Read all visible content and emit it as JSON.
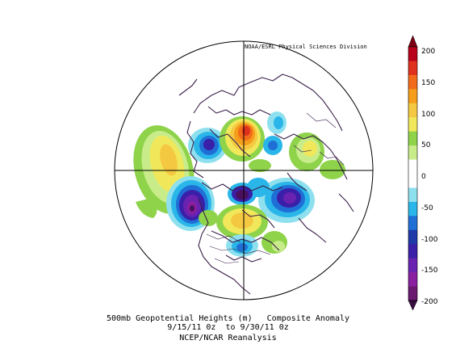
{
  "credit": "NOAA/ESRL Physical Sciences Division",
  "caption": {
    "line1": "500mb Geopotential Heights (m)   Composite Anomaly",
    "line2": "9/15/11 0z  to 9/30/11 0z",
    "line3": "NCEP/NCAR Reanalysis"
  },
  "colorbar": {
    "labels": [
      "200",
      "150",
      "100",
      "50",
      "0",
      "-50",
      "-100",
      "-150",
      "-200"
    ],
    "colors": [
      "#b8001a",
      "#e0301e",
      "#f26b1a",
      "#f59e1b",
      "#f5c842",
      "#f0e85a",
      "#8ed34a",
      "#c8ec8a",
      "#ffffff",
      "#ffffff",
      "#8fe0ee",
      "#2ab6e8",
      "#1f6fd6",
      "#1f3aa8",
      "#3a1fa8",
      "#6a22b0",
      "#8a20a0",
      "#6a1870"
    ]
  },
  "colors": {
    "coast": "#3a1f4a",
    "grid": "#000000",
    "outline": "#000000"
  }
}
